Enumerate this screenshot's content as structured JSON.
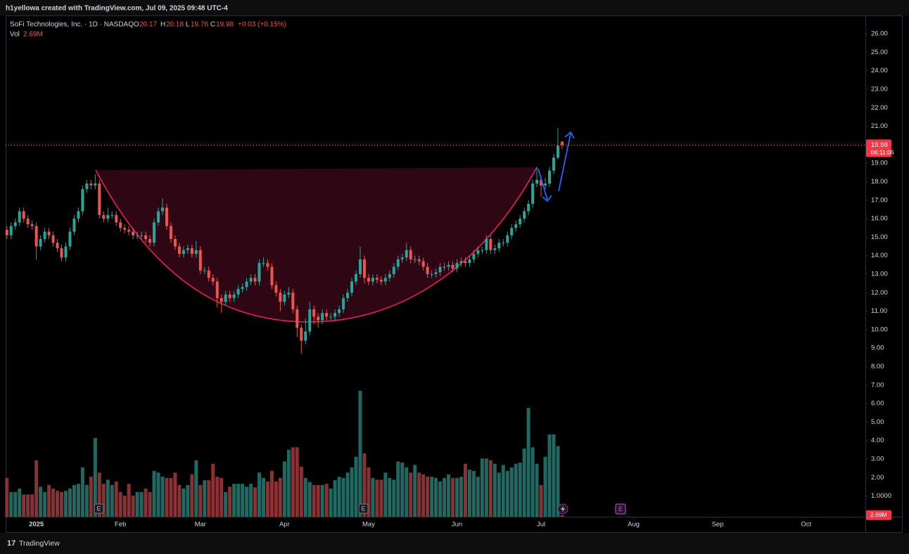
{
  "chart_data": {
    "type": "candlestick",
    "credit": "h1yellowa created with TradingView.com, Jul 09, 2025 09:48 UTC-4",
    "title": "SoFi Technologies, Inc. · 1D · NASDAQ",
    "ohlc_labels": [
      "O",
      "H",
      "L",
      "C"
    ],
    "change_label": "+0.03 (+0.15%)",
    "volume_name": "Vol",
    "volume_label": "2.69M",
    "countdown": "06:11:06",
    "brand": "TradingView",
    "up_color": "#26a69a",
    "down_color": "#ef5350",
    "volume_up_color": "#1f6962",
    "volume_down_color": "#8a3134",
    "price_line_color": "#f7a35c",
    "open": [
      15.4,
      15.1,
      15.6,
      15.8,
      16.4,
      16.0,
      15.7,
      15.6,
      14.5,
      14.9,
      15.3,
      15.1,
      14.7,
      14.4,
      13.9,
      14.5,
      15.3,
      16.0,
      16.4,
      17.6,
      17.9,
      17.8,
      17.9,
      16.2,
      16.0,
      16.2,
      16.2,
      15.8,
      15.5,
      15.4,
      15.3,
      15.1,
      15.1,
      15.1,
      14.9,
      14.7,
      15.8,
      16.4,
      16.6,
      15.6,
      14.9,
      14.5,
      14.1,
      14.3,
      14.4,
      14.1,
      14.3,
      13.2,
      13.2,
      12.8,
      12.6,
      11.7,
      11.5,
      11.9,
      11.7,
      11.9,
      12.2,
      12.3,
      12.6,
      12.8,
      12.6,
      13.6,
      13.6,
      13.4,
      12.4,
      12.0,
      11.5,
      11.9,
      12.0,
      11.1,
      10.1,
      9.4,
      9.9,
      11.1,
      10.7,
      10.5,
      10.9,
      10.7,
      10.7,
      10.9,
      11.1,
      11.7,
      12.0,
      12.6,
      13.0,
      13.8,
      12.8,
      12.6,
      12.8,
      12.7,
      12.6,
      12.8,
      13.0,
      13.4,
      13.8,
      13.9,
      14.3,
      13.8,
      13.8,
      13.7,
      13.4,
      13.0,
      13.0,
      13.1,
      13.4,
      13.4,
      13.5,
      13.3,
      13.6,
      13.7,
      13.6,
      13.8,
      14.1,
      14.3,
      14.3,
      14.9,
      14.3,
      14.4,
      14.7,
      14.7,
      15.1,
      15.5,
      15.7,
      16.0,
      16.4,
      16.8,
      17.9,
      18.1,
      17.8,
      17.9,
      18.6,
      19.3,
      20.17
    ],
    "high": [
      15.6,
      15.8,
      16.0,
      16.6,
      16.6,
      16.2,
      15.9,
      15.8,
      15.1,
      15.5,
      15.5,
      15.3,
      14.9,
      14.6,
      14.7,
      15.5,
      16.2,
      16.6,
      17.8,
      18.1,
      18.1,
      18.4,
      18.1,
      16.4,
      16.6,
      16.4,
      16.4,
      16.0,
      15.7,
      15.6,
      15.5,
      15.3,
      15.3,
      15.3,
      15.1,
      16.0,
      16.6,
      17.1,
      16.8,
      15.8,
      15.1,
      14.7,
      14.5,
      14.6,
      14.6,
      14.8,
      14.5,
      13.4,
      13.4,
      13.0,
      12.8,
      11.9,
      12.1,
      12.1,
      12.1,
      12.4,
      12.5,
      12.8,
      13.0,
      13.0,
      13.8,
      13.9,
      13.8,
      13.6,
      12.6,
      12.2,
      12.1,
      12.3,
      12.2,
      11.3,
      10.3,
      10.6,
      11.5,
      11.3,
      10.9,
      11.1,
      11.1,
      10.9,
      11.1,
      11.3,
      11.9,
      12.2,
      12.8,
      13.2,
      14.5,
      14.0,
      13.0,
      13.0,
      13.0,
      12.9,
      13.0,
      13.2,
      13.6,
      14.0,
      14.1,
      14.7,
      14.5,
      14.0,
      14.0,
      13.9,
      13.6,
      13.2,
      13.3,
      13.6,
      13.6,
      13.7,
      13.7,
      13.8,
      13.9,
      13.9,
      14.0,
      14.3,
      14.5,
      14.5,
      15.1,
      15.1,
      14.6,
      14.9,
      14.9,
      15.3,
      15.7,
      15.9,
      16.2,
      16.6,
      17.0,
      18.1,
      18.8,
      18.3,
      18.2,
      18.8,
      19.5,
      20.9,
      20.18
    ],
    "low": [
      14.9,
      14.9,
      15.4,
      15.6,
      15.8,
      15.5,
      15.4,
      13.8,
      14.3,
      14.7,
      14.9,
      14.5,
      14.2,
      13.7,
      13.7,
      14.3,
      15.1,
      15.8,
      16.2,
      17.4,
      17.6,
      17.6,
      16.0,
      15.8,
      15.8,
      16.0,
      15.6,
      15.3,
      15.2,
      15.1,
      14.9,
      14.9,
      14.9,
      14.7,
      14.5,
      14.5,
      15.6,
      16.2,
      15.4,
      14.7,
      14.3,
      13.9,
      13.9,
      14.1,
      13.9,
      13.9,
      13.0,
      13.0,
      12.6,
      12.4,
      11.2,
      10.9,
      11.3,
      11.5,
      11.5,
      11.7,
      12.0,
      12.1,
      12.4,
      12.4,
      12.4,
      13.4,
      13.2,
      12.2,
      11.8,
      11.0,
      11.3,
      11.7,
      10.9,
      9.6,
      8.7,
      9.2,
      9.7,
      10.3,
      10.1,
      10.3,
      10.5,
      10.5,
      10.5,
      10.7,
      10.9,
      11.5,
      11.8,
      12.4,
      12.8,
      12.5,
      12.4,
      12.4,
      12.5,
      12.4,
      12.4,
      12.6,
      12.8,
      13.2,
      13.6,
      13.7,
      13.6,
      13.6,
      13.5,
      13.2,
      12.8,
      12.8,
      12.8,
      12.9,
      13.2,
      13.2,
      13.1,
      13.1,
      13.4,
      13.4,
      13.4,
      13.6,
      13.9,
      14.1,
      14.1,
      14.1,
      14.1,
      14.2,
      14.5,
      14.5,
      14.9,
      15.3,
      15.5,
      15.8,
      16.2,
      16.6,
      17.7,
      17.2,
      17.6,
      17.7,
      18.4,
      19.2,
      19.76
    ],
    "close": [
      15.1,
      15.6,
      15.8,
      16.4,
      16.0,
      15.7,
      15.6,
      14.5,
      14.9,
      15.3,
      15.1,
      14.7,
      14.4,
      13.9,
      14.5,
      15.3,
      16.0,
      16.4,
      17.6,
      17.9,
      17.8,
      17.9,
      16.2,
      16.0,
      16.2,
      16.2,
      15.8,
      15.5,
      15.4,
      15.3,
      15.1,
      15.1,
      15.1,
      14.9,
      14.7,
      15.8,
      16.4,
      16.6,
      15.6,
      14.9,
      14.5,
      14.1,
      14.3,
      14.4,
      14.1,
      14.3,
      13.2,
      13.2,
      12.8,
      12.6,
      11.7,
      11.5,
      11.9,
      11.7,
      11.9,
      12.2,
      12.3,
      12.6,
      12.8,
      12.6,
      13.6,
      13.6,
      13.4,
      12.4,
      12.0,
      11.5,
      11.9,
      12.0,
      11.1,
      10.1,
      9.4,
      9.9,
      11.1,
      10.7,
      10.5,
      10.9,
      10.7,
      10.7,
      10.9,
      11.1,
      11.7,
      12.0,
      12.6,
      13.0,
      13.8,
      12.8,
      12.6,
      12.8,
      12.7,
      12.6,
      12.8,
      13.0,
      13.4,
      13.8,
      13.9,
      14.3,
      13.8,
      13.8,
      13.7,
      13.4,
      13.0,
      13.0,
      13.1,
      13.4,
      13.4,
      13.5,
      13.3,
      13.6,
      13.7,
      13.6,
      13.8,
      14.1,
      14.3,
      14.3,
      14.9,
      14.3,
      14.4,
      14.7,
      14.7,
      15.1,
      15.5,
      15.7,
      16.0,
      16.4,
      16.8,
      17.9,
      18.1,
      17.8,
      17.9,
      18.6,
      19.3,
      19.95,
      19.98
    ],
    "volume": [
      66,
      42,
      42,
      48,
      38,
      38,
      38,
      96,
      51,
      42,
      54,
      48,
      44,
      42,
      44,
      48,
      54,
      56,
      84,
      54,
      68,
      134,
      75,
      56,
      63,
      54,
      60,
      42,
      36,
      56,
      36,
      42,
      42,
      48,
      42,
      78,
      75,
      68,
      66,
      66,
      75,
      54,
      48,
      54,
      72,
      96,
      54,
      62,
      62,
      90,
      68,
      66,
      42,
      51,
      56,
      56,
      56,
      51,
      56,
      50,
      75,
      66,
      60,
      78,
      60,
      66,
      94,
      114,
      118,
      118,
      85,
      66,
      59,
      54,
      54,
      54,
      56,
      48,
      62,
      68,
      66,
      75,
      84,
      102,
      214,
      108,
      84,
      66,
      63,
      63,
      75,
      66,
      63,
      94,
      92,
      84,
      75,
      88,
      75,
      72,
      68,
      68,
      66,
      60,
      66,
      72,
      66,
      66,
      68,
      90,
      80,
      78,
      68,
      99,
      99,
      96,
      90,
      75,
      88,
      78,
      84,
      90,
      92,
      116,
      185,
      118,
      90,
      54,
      102,
      140,
      140,
      120,
      2.69
    ],
    "xlim": [
      -0.3,
      204.1
    ],
    "xticks": [
      {
        "value": 7,
        "label": "2025"
      },
      {
        "value": 27,
        "label": "Feb"
      },
      {
        "value": 46,
        "label": "Mar"
      },
      {
        "value": 66,
        "label": "Apr"
      },
      {
        "value": 86,
        "label": "May"
      },
      {
        "value": 107,
        "label": "Jun"
      },
      {
        "value": 127,
        "label": "Jul"
      },
      {
        "value": 149,
        "label": "Aug"
      },
      {
        "value": 169,
        "label": "Sep"
      },
      {
        "value": 190,
        "label": "Oct"
      }
    ],
    "ylim": [
      -0.12,
      26.99
    ],
    "yticks": [
      {
        "value": 26,
        "label": "26.00"
      },
      {
        "value": 25,
        "label": "25.00"
      },
      {
        "value": 24,
        "label": "24.00"
      },
      {
        "value": 23,
        "label": "23.00"
      },
      {
        "value": 22,
        "label": "22.00"
      },
      {
        "value": 21,
        "label": "21.00"
      },
      {
        "value": 20,
        "label": "20.00"
      },
      {
        "value": 19,
        "label": "19.00"
      },
      {
        "value": 18,
        "label": "18.00"
      },
      {
        "value": 17,
        "label": "17.00"
      },
      {
        "value": 16,
        "label": "16.00"
      },
      {
        "value": 15,
        "label": "15.00"
      },
      {
        "value": 14,
        "label": "14.00"
      },
      {
        "value": 13,
        "label": "13.00"
      },
      {
        "value": 12,
        "label": "12.00"
      },
      {
        "value": 11,
        "label": "11.00"
      },
      {
        "value": 10,
        "label": "10.00"
      },
      {
        "value": 9,
        "label": "9.00"
      },
      {
        "value": 8,
        "label": "8.00"
      },
      {
        "value": 7,
        "label": "7.00"
      },
      {
        "value": 6,
        "label": "6.00"
      },
      {
        "value": 5,
        "label": "5.00"
      },
      {
        "value": 4,
        "label": "4.00"
      },
      {
        "value": 3,
        "label": "3.00"
      },
      {
        "value": 2,
        "label": "2.00"
      },
      {
        "value": 1,
        "label": "1.0000"
      }
    ],
    "volume_lim": [
      0,
      520
    ],
    "grid": false
  }
}
